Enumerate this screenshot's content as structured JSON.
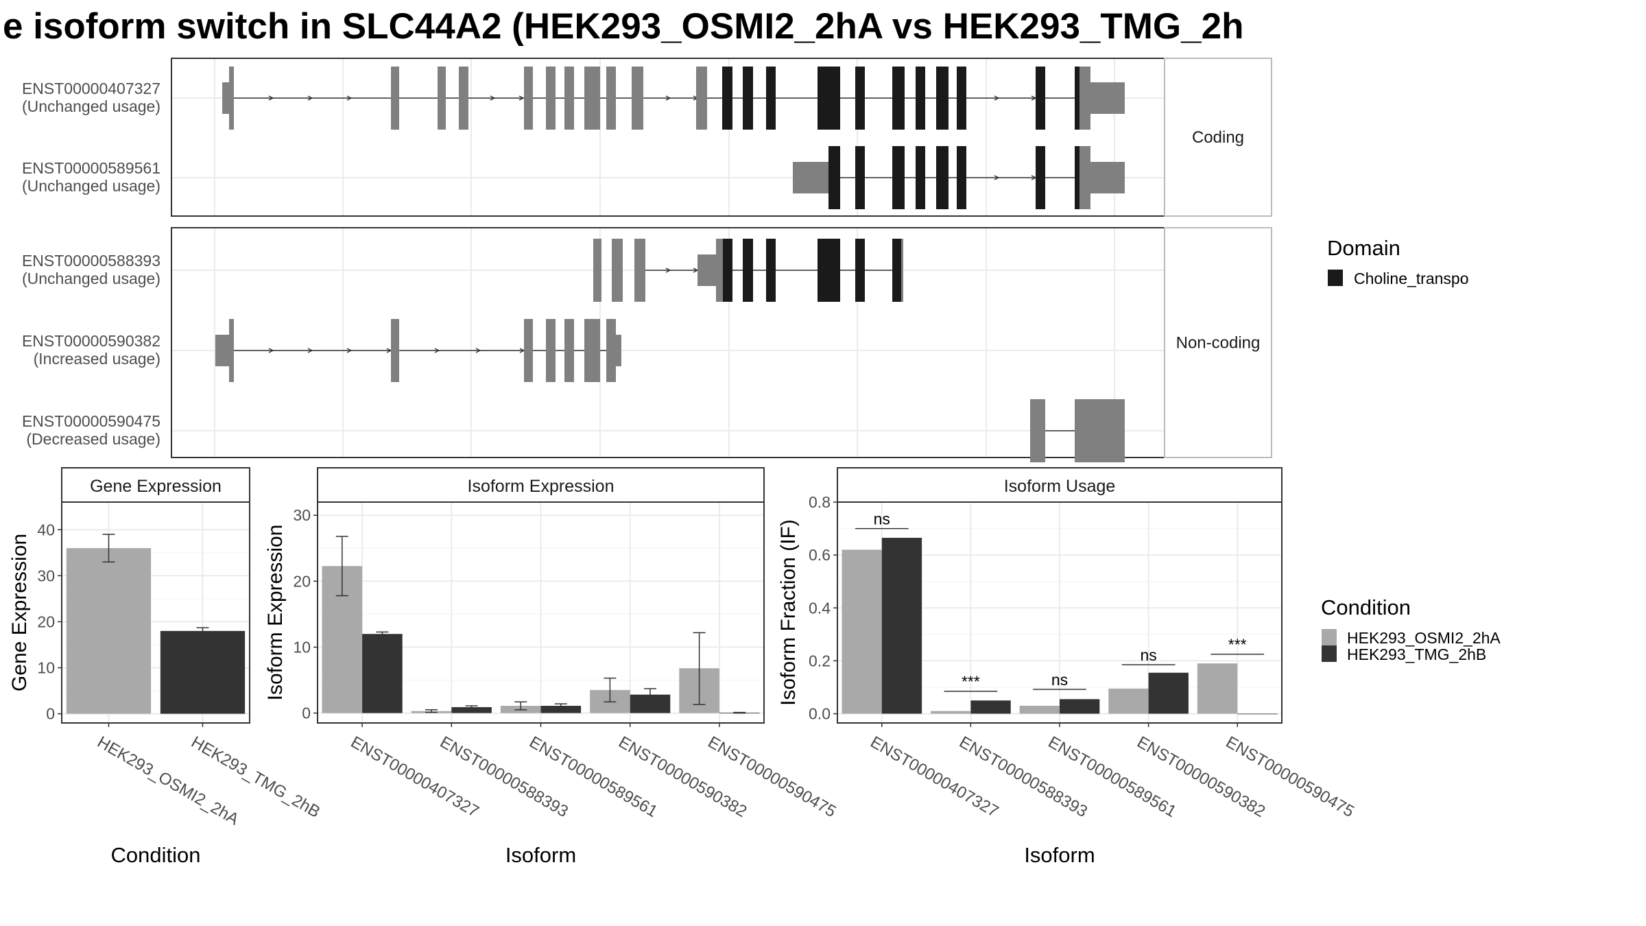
{
  "title": "e isoform switch in SLC44A2 (HEK293_OSMI2_2hA vs HEK293_TMG_2h",
  "colors": {
    "cond_a": "#a9a9a9",
    "cond_b": "#333333",
    "exon_utr": "#808080",
    "domain": "#1a1a1a"
  },
  "structure": {
    "facets": [
      {
        "label": "Coding",
        "isoforms": [
          {
            "id": "ENST00000407327",
            "usage": "(Unchanged usage)"
          },
          {
            "id": "ENST00000589561",
            "usage": "(Unchanged usage)"
          }
        ]
      },
      {
        "label": "Non-coding",
        "isoforms": [
          {
            "id": "ENST00000588393",
            "usage": "(Unchanged usage)"
          },
          {
            "id": "ENST00000590382",
            "usage": "(Increased usage)"
          },
          {
            "id": "ENST00000590475",
            "usage": "(Decreased usage)"
          }
        ]
      }
    ]
  },
  "domain_legend": {
    "title": "Domain",
    "items": [
      "Choline_transpo"
    ]
  },
  "condition_legend": {
    "title": "Condition",
    "items": [
      "HEK293_OSMI2_2hA",
      "HEK293_TMG_2hB"
    ]
  },
  "chart_data": [
    {
      "type": "bar",
      "title": "Gene Expression",
      "xlabel": "Condition",
      "ylabel": "Gene Expression",
      "categories": [
        "HEK293_OSMI2_2hA",
        "HEK293_TMG_2hB"
      ],
      "values": [
        36,
        18
      ],
      "errors": [
        [
          33,
          39
        ],
        [
          17.5,
          18.7
        ]
      ],
      "ylim": [
        -2,
        46
      ],
      "yticks": [
        "0",
        "10",
        "20",
        "30",
        "40"
      ]
    },
    {
      "type": "bar",
      "title": "Isoform Expression",
      "xlabel": "Isoform",
      "ylabel": "Isoform Expression",
      "categories": [
        "ENST00000407327",
        "ENST00000588393",
        "ENST00000589561",
        "ENST00000590382",
        "ENST00000590475"
      ],
      "series": [
        {
          "name": "HEK293_OSMI2_2hA",
          "values": [
            22.3,
            0.3,
            1.1,
            3.5,
            6.8
          ],
          "errors": [
            [
              17.8,
              26.8
            ],
            [
              0.1,
              0.5
            ],
            [
              0.5,
              1.7
            ],
            [
              1.7,
              5.3
            ],
            [
              1.3,
              12.2
            ]
          ]
        },
        {
          "name": "HEK293_TMG_2hB",
          "values": [
            12.0,
            0.9,
            1.1,
            2.8,
            0.05
          ],
          "errors": [
            [
              11.7,
              12.3
            ],
            [
              0.7,
              1.1
            ],
            [
              0.8,
              1.4
            ],
            [
              2.0,
              3.7
            ],
            [
              0.0,
              0.1
            ]
          ]
        }
      ],
      "ylim": [
        -1.5,
        32
      ],
      "yticks": [
        "0",
        "10",
        "20",
        "30"
      ]
    },
    {
      "type": "bar",
      "title": "Isoform Usage",
      "xlabel": "Isoform",
      "ylabel": "Isoform Fraction (IF)",
      "categories": [
        "ENST00000407327",
        "ENST00000588393",
        "ENST00000589561",
        "ENST00000590382",
        "ENST00000590475"
      ],
      "series": [
        {
          "name": "HEK293_OSMI2_2hA",
          "values": [
            0.62,
            0.01,
            0.03,
            0.095,
            0.19
          ]
        },
        {
          "name": "HEK293_TMG_2hB",
          "values": [
            0.665,
            0.05,
            0.055,
            0.155,
            0.0
          ]
        }
      ],
      "significance": [
        "ns",
        "***",
        "ns",
        "ns",
        "***"
      ],
      "sig_line_y": [
        0.7,
        0.085,
        0.092,
        0.185,
        0.225
      ],
      "ylim": [
        -0.035,
        0.8
      ],
      "yticks": [
        "0.0",
        "0.2",
        "0.4",
        "0.6",
        "0.8"
      ],
      "ytick_values": [
        0,
        0.2,
        0.4,
        0.6,
        0.8
      ]
    }
  ]
}
